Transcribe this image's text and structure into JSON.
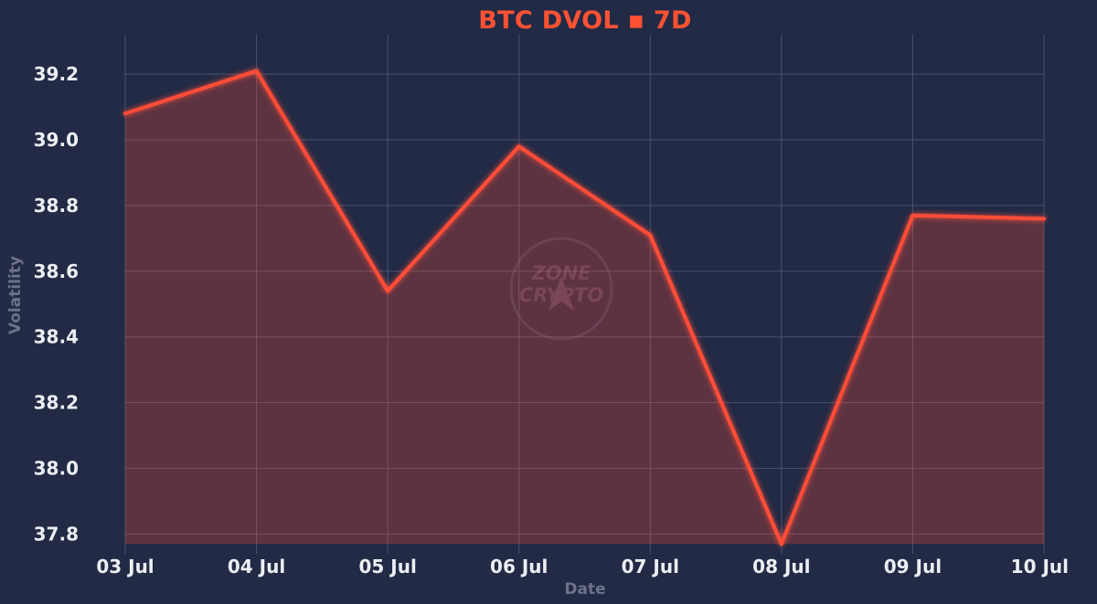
{
  "colors": {
    "background": "#222a45",
    "line": "#ff4d38",
    "title": "#ff5233",
    "tick": "#eceef3",
    "axis_title": "#6c7389",
    "grid": "#4a5270"
  },
  "watermark": {
    "line1": "ZONE",
    "line2": "CRYPTO"
  },
  "chart_data": {
    "type": "area",
    "title": "BTC DVOL ▪ 7D",
    "xlabel": "Date",
    "ylabel": "Volatility",
    "categories": [
      "03 Jul",
      "04 Jul",
      "05 Jul",
      "06 Jul",
      "07 Jul",
      "08 Jul",
      "09 Jul",
      "10 Jul"
    ],
    "values": [
      39.08,
      39.21,
      38.54,
      38.98,
      38.71,
      37.77,
      38.77,
      38.76
    ],
    "yticks": [
      37.8,
      38.0,
      38.2,
      38.4,
      38.6,
      38.8,
      39.0,
      39.2
    ],
    "ytick_labels": [
      "37.8",
      "38.0",
      "38.2",
      "38.4",
      "38.6",
      "38.8",
      "39.0",
      "39.2"
    ],
    "ylim": [
      37.74,
      39.32
    ],
    "grid": true,
    "legend": "none"
  }
}
